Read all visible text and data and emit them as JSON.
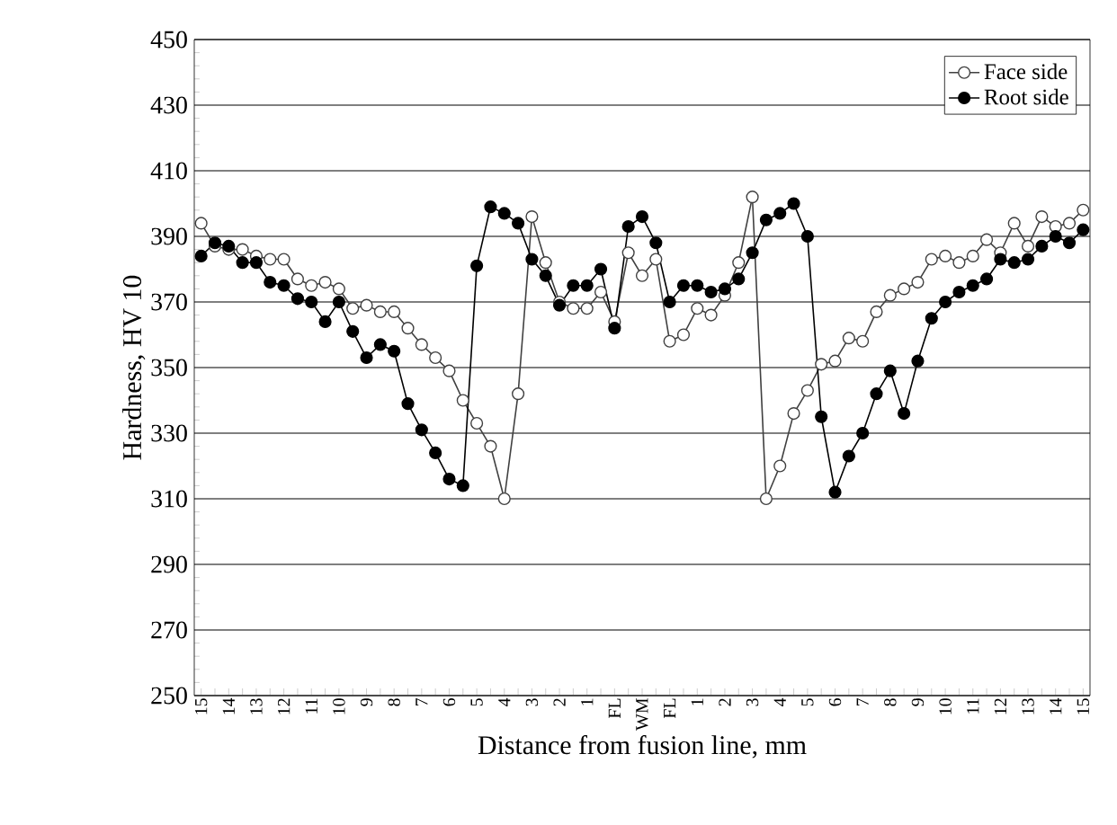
{
  "chart_data": {
    "type": "line",
    "xlabel": "Distance from fusion line, mm",
    "ylabel": "Hardness, HV 10",
    "categories": [
      "15",
      null,
      "14",
      null,
      "13",
      null,
      "12",
      null,
      "11",
      null,
      "10",
      null,
      "9",
      null,
      "8",
      null,
      "7",
      null,
      "6",
      null,
      "5",
      null,
      "4",
      null,
      "3",
      null,
      "2",
      null,
      "1",
      null,
      "FL",
      null,
      "WM",
      null,
      "FL",
      null,
      "1",
      null,
      "2",
      null,
      "3",
      null,
      "4",
      null,
      "5",
      null,
      "6",
      null,
      "7",
      null,
      "8",
      null,
      "9",
      null,
      "10",
      null,
      "11",
      null,
      "12",
      null,
      "13",
      null,
      "14",
      null,
      "15"
    ],
    "series": [
      {
        "name": "Face side",
        "color": "#404040",
        "values": [
          394,
          387,
          386,
          386,
          384,
          383,
          383,
          377,
          375,
          376,
          374,
          368,
          369,
          367,
          367,
          362,
          357,
          353,
          349,
          340,
          333,
          326,
          310,
          342,
          396,
          382,
          370,
          368,
          368,
          373,
          364,
          385,
          378,
          383,
          358,
          360,
          368,
          366,
          372,
          382,
          402,
          310,
          320,
          336,
          343,
          351,
          352,
          359,
          358,
          367,
          372,
          374,
          376,
          383,
          384,
          382,
          384,
          389,
          385,
          394,
          387,
          396,
          393,
          394,
          398
        ]
      },
      {
        "name": "Root side",
        "color": "#000000",
        "values": [
          384,
          388,
          387,
          382,
          382,
          376,
          375,
          371,
          370,
          364,
          370,
          361,
          353,
          357,
          355,
          339,
          331,
          324,
          316,
          314,
          381,
          399,
          397,
          394,
          383,
          378,
          369,
          375,
          375,
          380,
          362,
          393,
          396,
          388,
          370,
          375,
          375,
          373,
          374,
          377,
          385,
          395,
          397,
          400,
          390,
          335,
          312,
          323,
          330,
          342,
          349,
          336,
          352,
          365,
          370,
          373,
          375,
          377,
          383,
          382,
          383,
          387,
          390,
          388,
          392
        ]
      }
    ],
    "ylim": [
      250,
      450
    ],
    "yticks": [
      250,
      270,
      290,
      310,
      330,
      350,
      370,
      390,
      410,
      430,
      450
    ],
    "grid": "y",
    "legend": "top right",
    "marker": "circle",
    "line_style": "solid"
  }
}
